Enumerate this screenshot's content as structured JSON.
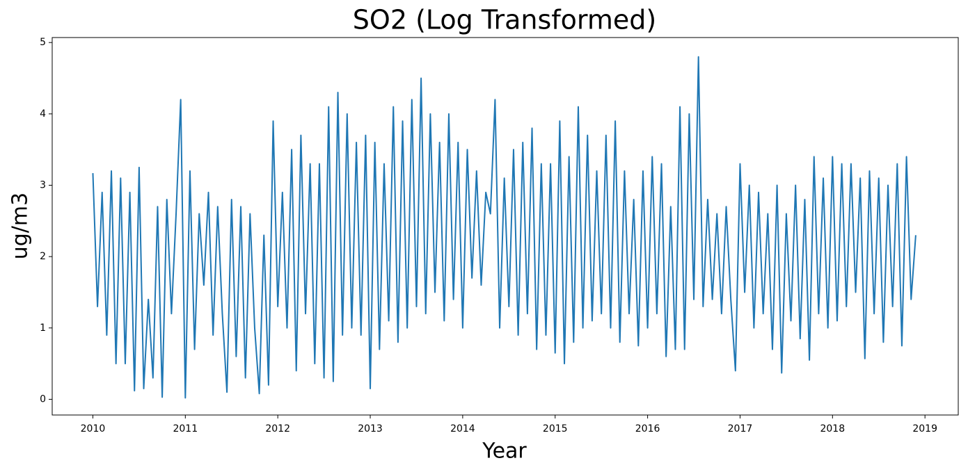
{
  "chart_data": {
    "type": "line",
    "title": "SO2 (Log Transformed)",
    "xlabel": "Year",
    "ylabel": "ug/m3",
    "color": "#1f77b4",
    "xlim": [
      2009.56,
      2019.36
    ],
    "xticks": [
      2010,
      2011,
      2012,
      2013,
      2014,
      2015,
      2016,
      2017,
      2018,
      2019
    ],
    "ylim": [
      -0.22,
      5.07
    ],
    "yticks": [
      0,
      1,
      2,
      3,
      4,
      5
    ],
    "grid": false,
    "x": [
      2010.0,
      2010.05,
      2010.1,
      2010.15,
      2010.2,
      2010.25,
      2010.3,
      2010.35,
      2010.4,
      2010.45,
      2010.5,
      2010.55,
      2010.6,
      2010.65,
      2010.7,
      2010.75,
      2010.8,
      2010.85,
      2010.9,
      2010.95,
      2011.0,
      2011.05,
      2011.1,
      2011.15,
      2011.2,
      2011.25,
      2011.3,
      2011.35,
      2011.4,
      2011.45,
      2011.5,
      2011.55,
      2011.6,
      2011.65,
      2011.7,
      2011.75,
      2011.8,
      2011.85,
      2011.9,
      2011.95,
      2012.0,
      2012.05,
      2012.1,
      2012.15,
      2012.2,
      2012.25,
      2012.3,
      2012.35,
      2012.4,
      2012.45,
      2012.5,
      2012.55,
      2012.6,
      2012.65,
      2012.7,
      2012.75,
      2012.8,
      2012.85,
      2012.9,
      2012.95,
      2013.0,
      2013.05,
      2013.1,
      2013.15,
      2013.2,
      2013.25,
      2013.3,
      2013.35,
      2013.4,
      2013.45,
      2013.5,
      2013.55,
      2013.6,
      2013.65,
      2013.7,
      2013.75,
      2013.8,
      2013.85,
      2013.9,
      2013.95,
      2014.0,
      2014.05,
      2014.1,
      2014.15,
      2014.2,
      2014.25,
      2014.3,
      2014.35,
      2014.4,
      2014.45,
      2014.5,
      2014.55,
      2014.6,
      2014.65,
      2014.7,
      2014.75,
      2014.8,
      2014.85,
      2014.9,
      2014.95,
      2015.0,
      2015.05,
      2015.1,
      2015.15,
      2015.2,
      2015.25,
      2015.3,
      2015.35,
      2015.4,
      2015.45,
      2015.5,
      2015.55,
      2015.6,
      2015.65,
      2015.7,
      2015.75,
      2015.8,
      2015.85,
      2015.9,
      2015.95,
      2016.0,
      2016.05,
      2016.1,
      2016.15,
      2016.2,
      2016.25,
      2016.3,
      2016.35,
      2016.4,
      2016.45,
      2016.5,
      2016.55,
      2016.6,
      2016.65,
      2016.7,
      2016.75,
      2016.8,
      2016.85,
      2016.9,
      2016.95,
      2017.0,
      2017.05,
      2017.1,
      2017.15,
      2017.2,
      2017.25,
      2017.3,
      2017.35,
      2017.4,
      2017.45,
      2017.5,
      2017.55,
      2017.6,
      2017.65,
      2017.7,
      2017.75,
      2017.8,
      2017.85,
      2017.9,
      2017.95,
      2018.0,
      2018.05,
      2018.1,
      2018.15,
      2018.2,
      2018.25,
      2018.3,
      2018.35,
      2018.4,
      2018.45,
      2018.5,
      2018.55,
      2018.6,
      2018.65,
      2018.7,
      2018.75,
      2018.8,
      2018.85,
      2018.9
    ],
    "values": [
      3.17,
      1.3,
      2.9,
      0.9,
      3.2,
      0.5,
      3.1,
      0.5,
      2.9,
      0.12,
      3.25,
      0.15,
      1.4,
      0.3,
      2.7,
      0.03,
      2.8,
      1.2,
      2.6,
      4.2,
      0.02,
      3.2,
      0.7,
      2.6,
      1.6,
      2.9,
      0.9,
      2.7,
      1.2,
      0.1,
      2.8,
      0.6,
      2.7,
      0.3,
      2.6,
      1.0,
      0.08,
      2.3,
      0.2,
      3.9,
      1.3,
      2.9,
      1.0,
      3.5,
      0.4,
      3.7,
      1.2,
      3.3,
      0.5,
      3.3,
      0.3,
      4.1,
      0.25,
      4.3,
      0.9,
      4.0,
      1.0,
      3.6,
      0.9,
      3.7,
      0.15,
      3.6,
      0.7,
      3.3,
      1.1,
      4.1,
      0.8,
      3.9,
      1.0,
      4.2,
      1.3,
      4.5,
      1.2,
      4.0,
      1.5,
      3.6,
      1.1,
      4.0,
      1.4,
      3.6,
      1.0,
      3.5,
      1.7,
      3.2,
      1.6,
      2.9,
      2.6,
      4.2,
      1.0,
      3.1,
      1.3,
      3.5,
      0.9,
      3.6,
      1.2,
      3.8,
      0.7,
      3.3,
      0.9,
      3.3,
      0.65,
      3.9,
      0.5,
      3.4,
      0.8,
      4.1,
      1.0,
      3.7,
      1.1,
      3.2,
      1.2,
      3.7,
      1.0,
      3.9,
      0.8,
      3.2,
      1.2,
      2.8,
      0.75,
      3.2,
      1.0,
      3.4,
      1.2,
      3.3,
      0.6,
      2.7,
      0.7,
      4.1,
      0.7,
      4.0,
      1.4,
      4.8,
      1.3,
      2.8,
      1.4,
      2.6,
      1.2,
      2.7,
      1.4,
      0.4,
      3.3,
      1.5,
      3.0,
      1.0,
      2.9,
      1.2,
      2.6,
      0.7,
      3.0,
      0.37,
      2.6,
      1.1,
      3.0,
      0.85,
      2.8,
      0.55,
      3.4,
      1.2,
      3.1,
      1.0,
      3.4,
      1.1,
      3.3,
      1.3,
      3.3,
      1.5,
      3.1,
      0.57,
      3.2,
      1.2,
      3.1,
      0.8,
      3.0,
      1.3,
      3.3,
      0.75,
      3.4,
      1.4,
      2.3
    ]
  }
}
